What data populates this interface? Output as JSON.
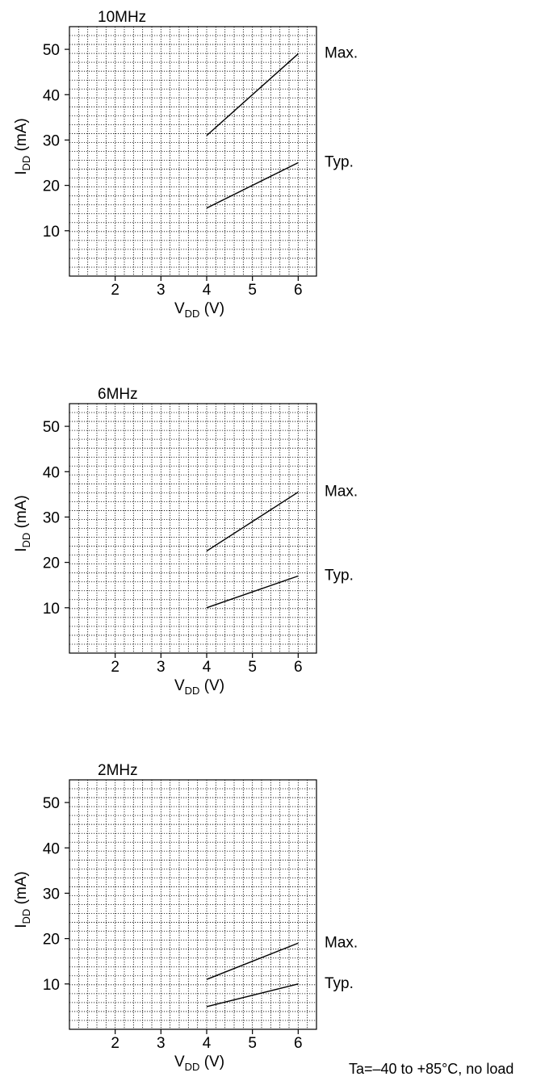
{
  "chart_data": [
    {
      "type": "line",
      "title": "10MHz",
      "xlabel": "V",
      "xlabel_sub": "DD",
      "xlabel_unit": " (V)",
      "ylabel": "I",
      "ylabel_sub": "DD",
      "ylabel_unit": " (mA)",
      "xlim": [
        1,
        6.4
      ],
      "ylim": [
        0,
        55
      ],
      "xticks": [
        2,
        3,
        4,
        5,
        6
      ],
      "yticks": [
        10,
        20,
        30,
        40,
        50
      ],
      "grid": true,
      "series": [
        {
          "name": "Max.",
          "x": [
            4,
            6
          ],
          "y": [
            31,
            49
          ]
        },
        {
          "name": "Typ.",
          "x": [
            4,
            6
          ],
          "y": [
            15,
            25
          ]
        }
      ]
    },
    {
      "type": "line",
      "title": "6MHz",
      "xlabel": "V",
      "xlabel_sub": "DD",
      "xlabel_unit": " (V)",
      "ylabel": "I",
      "ylabel_sub": "DD",
      "ylabel_unit": " (mA)",
      "xlim": [
        1,
        6.4
      ],
      "ylim": [
        0,
        55
      ],
      "xticks": [
        2,
        3,
        4,
        5,
        6
      ],
      "yticks": [
        10,
        20,
        30,
        40,
        50
      ],
      "grid": true,
      "series": [
        {
          "name": "Max.",
          "x": [
            4,
            6
          ],
          "y": [
            22.5,
            35.5
          ]
        },
        {
          "name": "Typ.",
          "x": [
            4,
            6
          ],
          "y": [
            10,
            17
          ]
        }
      ]
    },
    {
      "type": "line",
      "title": "2MHz",
      "xlabel": "V",
      "xlabel_sub": "DD",
      "xlabel_unit": " (V)",
      "ylabel": "I",
      "ylabel_sub": "DD",
      "ylabel_unit": " (mA)",
      "xlim": [
        1,
        6.4
      ],
      "ylim": [
        0,
        55
      ],
      "xticks": [
        2,
        3,
        4,
        5,
        6
      ],
      "yticks": [
        10,
        20,
        30,
        40,
        50
      ],
      "grid": true,
      "series": [
        {
          "name": "Max.",
          "x": [
            4,
            6
          ],
          "y": [
            11,
            19
          ]
        },
        {
          "name": "Typ.",
          "x": [
            4,
            6
          ],
          "y": [
            5,
            10
          ]
        }
      ]
    }
  ],
  "footnote": "Ta=–40 to +85°C, no load"
}
